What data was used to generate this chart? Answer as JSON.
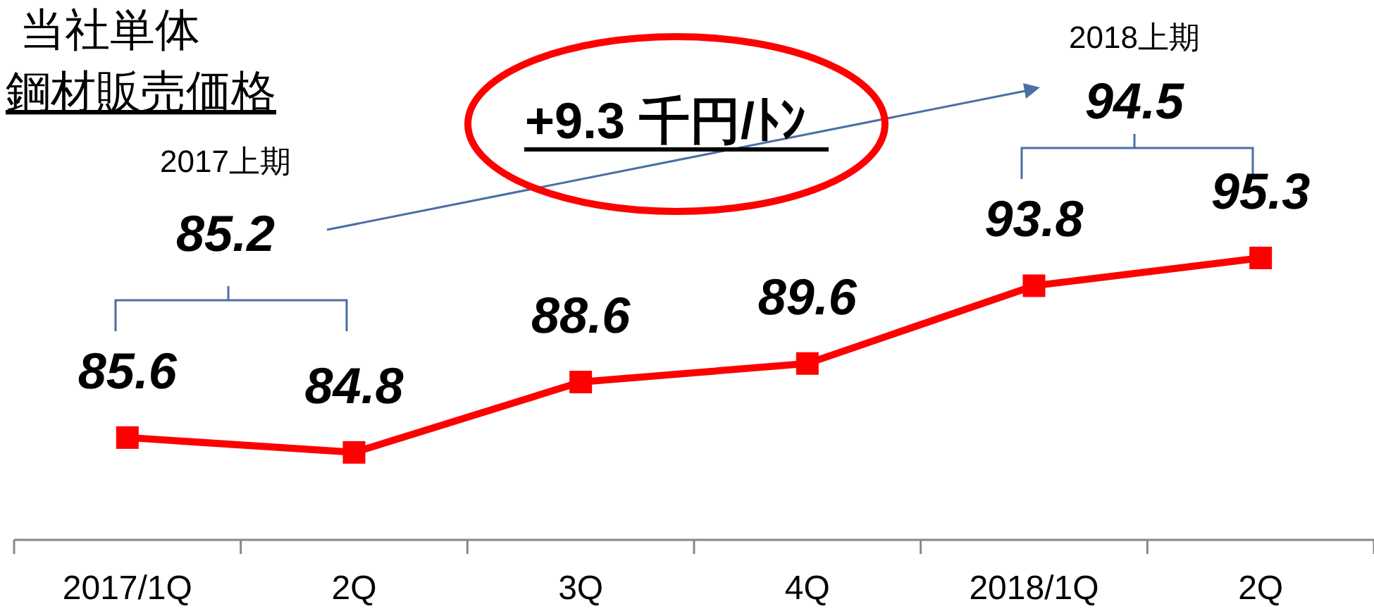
{
  "chart_data": {
    "type": "line",
    "title": "当社単体",
    "subtitle": "鋼材販売価格",
    "categories": [
      "2017/1Q",
      "2Q",
      "3Q",
      "4Q",
      "2018/1Q",
      "2Q"
    ],
    "series": [
      {
        "color": "#ff0000",
        "values": [
          85.6,
          84.8,
          88.6,
          89.6,
          93.8,
          95.3
        ]
      }
    ],
    "data_labels": true,
    "marker": "square",
    "line_style": "solid",
    "grid": false,
    "annotations": [
      "2017上期",
      "85.2",
      "2018上期",
      "94.5",
      "+9.3 千円/ﾄﾝ"
    ]
  }
}
